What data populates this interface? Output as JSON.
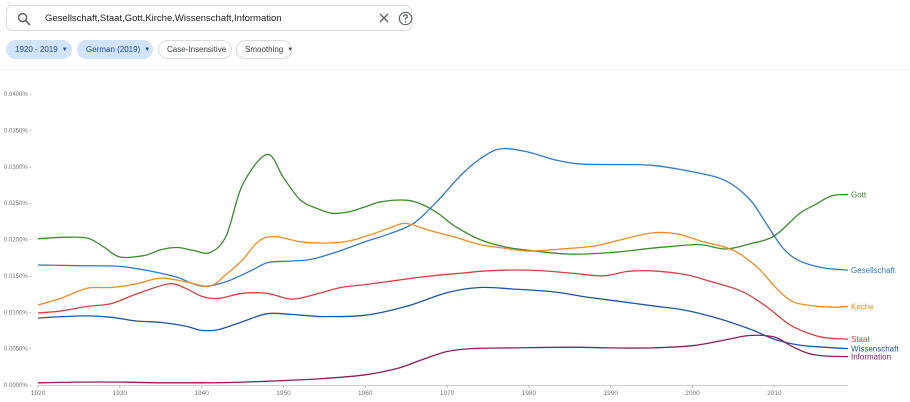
{
  "search": {
    "value": "Gesellschaft,Staat,Gott,Kirche,Wissenschaft,Information",
    "search_icon": "search-icon",
    "clear_icon": "close-icon",
    "help_icon": "help-circle-icon"
  },
  "filters": {
    "years": "1920 - 2019",
    "corpus": "German (2019)",
    "case": "Case-Insensitive",
    "smoothing": "Smoothing"
  },
  "colors": {
    "active_chip_bg": "#d2e3fc",
    "active_chip_text": "#174ea6"
  },
  "chart_data": {
    "type": "line",
    "title": "",
    "xlabel": "",
    "ylabel": "",
    "xlim": [
      1920,
      2019
    ],
    "ylim": [
      0,
      0.04
    ],
    "grid": false,
    "legend": "end-of-line labels",
    "x_ticks": [
      1920,
      1930,
      1940,
      1950,
      1960,
      1970,
      1980,
      1990,
      2000,
      2010
    ],
    "y_ticks": [
      {
        "value": 0.0,
        "label": "0.0000% -"
      },
      {
        "value": 0.005,
        "label": "0.0050% -"
      },
      {
        "value": 0.01,
        "label": "0.0100% -"
      },
      {
        "value": 0.015,
        "label": "0.0150% -"
      },
      {
        "value": 0.02,
        "label": "0.0200% -"
      },
      {
        "value": 0.025,
        "label": "0.0250% -"
      },
      {
        "value": 0.03,
        "label": "0.0300% -"
      },
      {
        "value": 0.035,
        "label": "0.0350% -"
      },
      {
        "value": 0.04,
        "label": "0.0400% -"
      }
    ],
    "series": [
      {
        "name": "Gott",
        "color": "#3b8a2e",
        "points": [
          [
            1920,
            0.0201
          ],
          [
            1923,
            0.0203
          ],
          [
            1926,
            0.0202
          ],
          [
            1928,
            0.019
          ],
          [
            1930,
            0.0176
          ],
          [
            1933,
            0.0178
          ],
          [
            1935,
            0.0186
          ],
          [
            1937,
            0.0189
          ],
          [
            1939,
            0.0185
          ],
          [
            1941,
            0.0182
          ],
          [
            1943,
            0.0205
          ],
          [
            1945,
            0.0275
          ],
          [
            1948,
            0.0317
          ],
          [
            1950,
            0.0285
          ],
          [
            1952,
            0.0255
          ],
          [
            1954,
            0.0243
          ],
          [
            1956,
            0.0236
          ],
          [
            1958,
            0.0238
          ],
          [
            1960,
            0.0245
          ],
          [
            1962,
            0.0252
          ],
          [
            1965,
            0.0254
          ],
          [
            1967,
            0.0248
          ],
          [
            1969,
            0.0235
          ],
          [
            1971,
            0.0218
          ],
          [
            1974,
            0.02
          ],
          [
            1977,
            0.019
          ],
          [
            1980,
            0.0185
          ],
          [
            1985,
            0.018
          ],
          [
            1990,
            0.0182
          ],
          [
            1995,
            0.0188
          ],
          [
            1998,
            0.0191
          ],
          [
            2001,
            0.0193
          ],
          [
            2004,
            0.0187
          ],
          [
            2007,
            0.0194
          ],
          [
            2010,
            0.0205
          ],
          [
            2013,
            0.0235
          ],
          [
            2015,
            0.0248
          ],
          [
            2017,
            0.026
          ],
          [
            2019,
            0.0262
          ]
        ]
      },
      {
        "name": "Gesellschaft",
        "color": "#3479c1",
        "points": [
          [
            1920,
            0.0165
          ],
          [
            1925,
            0.0164
          ],
          [
            1930,
            0.0163
          ],
          [
            1934,
            0.0156
          ],
          [
            1937,
            0.0148
          ],
          [
            1940,
            0.0136
          ],
          [
            1943,
            0.0142
          ],
          [
            1946,
            0.0157
          ],
          [
            1948,
            0.0168
          ],
          [
            1950,
            0.017
          ],
          [
            1953,
            0.0172
          ],
          [
            1956,
            0.0181
          ],
          [
            1960,
            0.0197
          ],
          [
            1963,
            0.0208
          ],
          [
            1966,
            0.0223
          ],
          [
            1969,
            0.0255
          ],
          [
            1972,
            0.0292
          ],
          [
            1975,
            0.0318
          ],
          [
            1977,
            0.0325
          ],
          [
            1980,
            0.032
          ],
          [
            1983,
            0.031
          ],
          [
            1986,
            0.0304
          ],
          [
            1990,
            0.0303
          ],
          [
            1995,
            0.0302
          ],
          [
            2000,
            0.0293
          ],
          [
            2004,
            0.0281
          ],
          [
            2007,
            0.0255
          ],
          [
            2009,
            0.0222
          ],
          [
            2011,
            0.0189
          ],
          [
            2013,
            0.0171
          ],
          [
            2016,
            0.0161
          ],
          [
            2019,
            0.0158
          ]
        ]
      },
      {
        "name": "Kirche",
        "color": "#ee8c23",
        "points": [
          [
            1920,
            0.011
          ],
          [
            1923,
            0.012
          ],
          [
            1926,
            0.0133
          ],
          [
            1929,
            0.0134
          ],
          [
            1932,
            0.0139
          ],
          [
            1935,
            0.0147
          ],
          [
            1938,
            0.0142
          ],
          [
            1941,
            0.0136
          ],
          [
            1943,
            0.0152
          ],
          [
            1945,
            0.0172
          ],
          [
            1947,
            0.0198
          ],
          [
            1949,
            0.0204
          ],
          [
            1952,
            0.0197
          ],
          [
            1955,
            0.0195
          ],
          [
            1958,
            0.0198
          ],
          [
            1961,
            0.0208
          ],
          [
            1963,
            0.0216
          ],
          [
            1965,
            0.0222
          ],
          [
            1968,
            0.0212
          ],
          [
            1971,
            0.0203
          ],
          [
            1974,
            0.0193
          ],
          [
            1977,
            0.0188
          ],
          [
            1980,
            0.0184
          ],
          [
            1984,
            0.0187
          ],
          [
            1988,
            0.0191
          ],
          [
            1991,
            0.0199
          ],
          [
            1995,
            0.0209
          ],
          [
            1998,
            0.0208
          ],
          [
            2001,
            0.0198
          ],
          [
            2005,
            0.0185
          ],
          [
            2008,
            0.0161
          ],
          [
            2010,
            0.0136
          ],
          [
            2012,
            0.0116
          ],
          [
            2014,
            0.011
          ],
          [
            2017,
            0.0107
          ],
          [
            2019,
            0.0108
          ]
        ]
      },
      {
        "name": "Staat",
        "color": "#d24245",
        "points": [
          [
            1920,
            0.0099
          ],
          [
            1923,
            0.0102
          ],
          [
            1926,
            0.0108
          ],
          [
            1929,
            0.0112
          ],
          [
            1932,
            0.0125
          ],
          [
            1936,
            0.0139
          ],
          [
            1938,
            0.0133
          ],
          [
            1940,
            0.0122
          ],
          [
            1942,
            0.0119
          ],
          [
            1945,
            0.0126
          ],
          [
            1948,
            0.0126
          ],
          [
            1951,
            0.0118
          ],
          [
            1954,
            0.0125
          ],
          [
            1957,
            0.0134
          ],
          [
            1960,
            0.0138
          ],
          [
            1964,
            0.0144
          ],
          [
            1968,
            0.015
          ],
          [
            1972,
            0.0154
          ],
          [
            1975,
            0.0157
          ],
          [
            1980,
            0.0158
          ],
          [
            1985,
            0.0154
          ],
          [
            1989,
            0.015
          ],
          [
            1992,
            0.0156
          ],
          [
            1995,
            0.0157
          ],
          [
            1999,
            0.0152
          ],
          [
            2002,
            0.0143
          ],
          [
            2006,
            0.0129
          ],
          [
            2009,
            0.0108
          ],
          [
            2012,
            0.0082
          ],
          [
            2015,
            0.0068
          ],
          [
            2017,
            0.0064
          ],
          [
            2019,
            0.0063
          ]
        ]
      },
      {
        "name": "Wissenschaft",
        "color": "#1e55a0",
        "points": [
          [
            1920,
            0.0092
          ],
          [
            1923,
            0.0094
          ],
          [
            1926,
            0.0095
          ],
          [
            1929,
            0.0093
          ],
          [
            1932,
            0.0088
          ],
          [
            1935,
            0.0086
          ],
          [
            1938,
            0.0081
          ],
          [
            1940,
            0.0075
          ],
          [
            1942,
            0.0076
          ],
          [
            1945,
            0.0087
          ],
          [
            1948,
            0.0098
          ],
          [
            1951,
            0.0097
          ],
          [
            1955,
            0.0094
          ],
          [
            1960,
            0.0096
          ],
          [
            1965,
            0.0108
          ],
          [
            1970,
            0.0127
          ],
          [
            1974,
            0.0134
          ],
          [
            1978,
            0.0132
          ],
          [
            1983,
            0.0128
          ],
          [
            1987,
            0.0121
          ],
          [
            1991,
            0.0115
          ],
          [
            1995,
            0.0109
          ],
          [
            1999,
            0.0103
          ],
          [
            2003,
            0.0092
          ],
          [
            2007,
            0.0077
          ],
          [
            2010,
            0.0063
          ],
          [
            2013,
            0.0055
          ],
          [
            2016,
            0.0052
          ],
          [
            2019,
            0.005
          ]
        ]
      },
      {
        "name": "Information",
        "color": "#8c1d5a",
        "points": [
          [
            1920,
            0.0003
          ],
          [
            1925,
            0.0004
          ],
          [
            1930,
            0.0004
          ],
          [
            1935,
            0.0003
          ],
          [
            1940,
            0.0003
          ],
          [
            1945,
            0.0004
          ],
          [
            1950,
            0.0006
          ],
          [
            1955,
            0.0009
          ],
          [
            1960,
            0.0014
          ],
          [
            1964,
            0.0023
          ],
          [
            1967,
            0.0035
          ],
          [
            1970,
            0.0046
          ],
          [
            1973,
            0.005
          ],
          [
            1978,
            0.0051
          ],
          [
            1985,
            0.0052
          ],
          [
            1990,
            0.0051
          ],
          [
            1995,
            0.0051
          ],
          [
            2000,
            0.0054
          ],
          [
            2004,
            0.0062
          ],
          [
            2007,
            0.0068
          ],
          [
            2010,
            0.0066
          ],
          [
            2012,
            0.0054
          ],
          [
            2014,
            0.0044
          ],
          [
            2016,
            0.004
          ],
          [
            2019,
            0.0039
          ]
        ]
      }
    ]
  }
}
